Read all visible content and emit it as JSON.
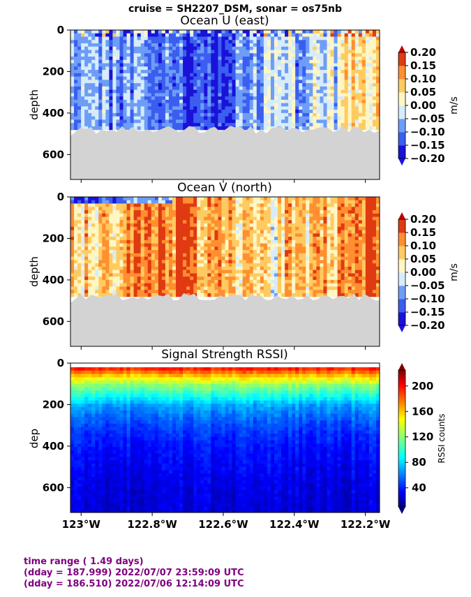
{
  "suptitle": "cruise = SH2207_DSM,  sonar = os75nb",
  "footer": {
    "line1": "time range ( 1.49 days)",
    "line2": "(dday = 187.999) 2022/07/07 23:59:09 UTC",
    "line3": "(dday = 186.510) 2022/07/06 12:14:09 UTC"
  },
  "colors": {
    "footer_text": "#800080",
    "bottom_fill": "#d3d3d3"
  },
  "chart_data": [
    {
      "type": "heatmap",
      "title": "Ocean U (east)",
      "ylabel": "depth",
      "xlim": [
        -123.03,
        -122.16
      ],
      "ylim": [
        720,
        0
      ],
      "yticks": [
        0,
        200,
        400,
        600
      ],
      "colorbar": {
        "label": "m/s",
        "ticks": [
          "0.20",
          "0.15",
          "0.10",
          "0.05",
          "0.00",
          "−0.05",
          "−0.10",
          "−0.15",
          "−0.20"
        ],
        "range": [
          -0.2,
          0.2
        ],
        "colormap": "diverging-jet"
      },
      "data_bottom_depth_m": 480,
      "x_bands_deg": [
        -123.03,
        -122.9,
        -122.82,
        -122.72,
        -122.65,
        -122.58,
        -122.52,
        -122.44,
        -122.36,
        -122.27,
        -122.16
      ],
      "u_band_means_mps": [
        -0.08,
        -0.1,
        -0.12,
        -0.16,
        -0.15,
        -0.1,
        -0.05,
        -0.06,
        -0.03,
        0.04
      ]
    },
    {
      "type": "heatmap",
      "title": "Ocean V (north)",
      "ylabel": "depth",
      "xlim": [
        -123.03,
        -122.16
      ],
      "ylim": [
        720,
        0
      ],
      "yticks": [
        0,
        200,
        400,
        600
      ],
      "colorbar": {
        "label": "m/s",
        "ticks": [
          "0.20",
          "0.15",
          "0.10",
          "0.05",
          "0.00",
          "−0.05",
          "−0.10",
          "−0.15",
          "−0.20"
        ],
        "range": [
          -0.2,
          0.2
        ],
        "colormap": "diverging-jet"
      },
      "data_bottom_depth_m": 480,
      "x_bands_deg": [
        -123.03,
        -122.9,
        -122.82,
        -122.72,
        -122.65,
        -122.58,
        -122.52,
        -122.44,
        -122.36,
        -122.27,
        -122.16
      ],
      "v_band_means_mps": [
        0.06,
        0.12,
        0.14,
        0.12,
        0.1,
        0.07,
        0.03,
        0.07,
        0.09,
        0.15
      ]
    },
    {
      "type": "heatmap",
      "title": "Signal Strength RSSI)",
      "ylabel": "dep",
      "xlabel_ticks": [
        "123°W",
        "122.8°W",
        "122.6°W",
        "122.4°W",
        "122.2°W"
      ],
      "xtick_values": [
        -123.0,
        -122.8,
        -122.6,
        -122.4,
        -122.2
      ],
      "xlim": [
        -123.03,
        -122.16
      ],
      "ylim": [
        720,
        0
      ],
      "yticks": [
        0,
        200,
        400,
        600
      ],
      "colorbar": {
        "label": "RSSI counts",
        "ticks": [
          "200",
          "160",
          "120",
          "80",
          "40"
        ],
        "range": [
          10,
          225
        ],
        "colormap": "jet"
      },
      "rssi_profile": {
        "depths_m": [
          20,
          60,
          100,
          150,
          200,
          300,
          400,
          550,
          700
        ],
        "counts": [
          190,
          150,
          120,
          95,
          70,
          50,
          40,
          32,
          28
        ]
      }
    }
  ]
}
